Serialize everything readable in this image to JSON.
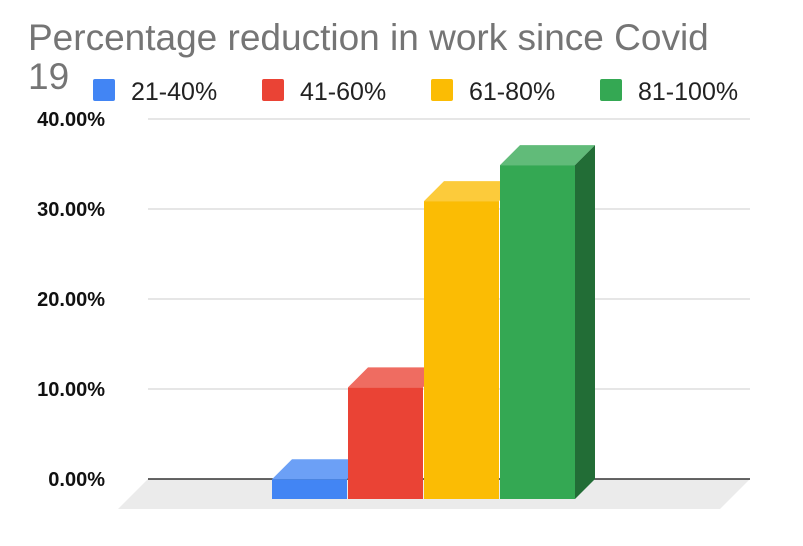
{
  "chart_data": {
    "type": "bar",
    "title": "Percentage reduction in work since Covid 19",
    "title_lines": [
      "Percentage reduction in work since Covid",
      "19"
    ],
    "legend_position": "top",
    "grid": true,
    "ylim": [
      0,
      40
    ],
    "yticks": [
      {
        "value": 0,
        "label": "0.00%"
      },
      {
        "value": 10,
        "label": "10.00%"
      },
      {
        "value": 20,
        "label": "20.00%"
      },
      {
        "value": 30,
        "label": "30.00%"
      },
      {
        "value": 40,
        "label": "40.00%"
      }
    ],
    "series": [
      {
        "name": "21-40%",
        "value": 2.2,
        "color": "#4285f4"
      },
      {
        "name": "41-60%",
        "value": 12.4,
        "color": "#ea4335"
      },
      {
        "name": "61-80%",
        "value": 33.1,
        "color": "#fbbc04"
      },
      {
        "name": "81-100%",
        "value": 37.1,
        "color": "#34a853"
      }
    ]
  }
}
